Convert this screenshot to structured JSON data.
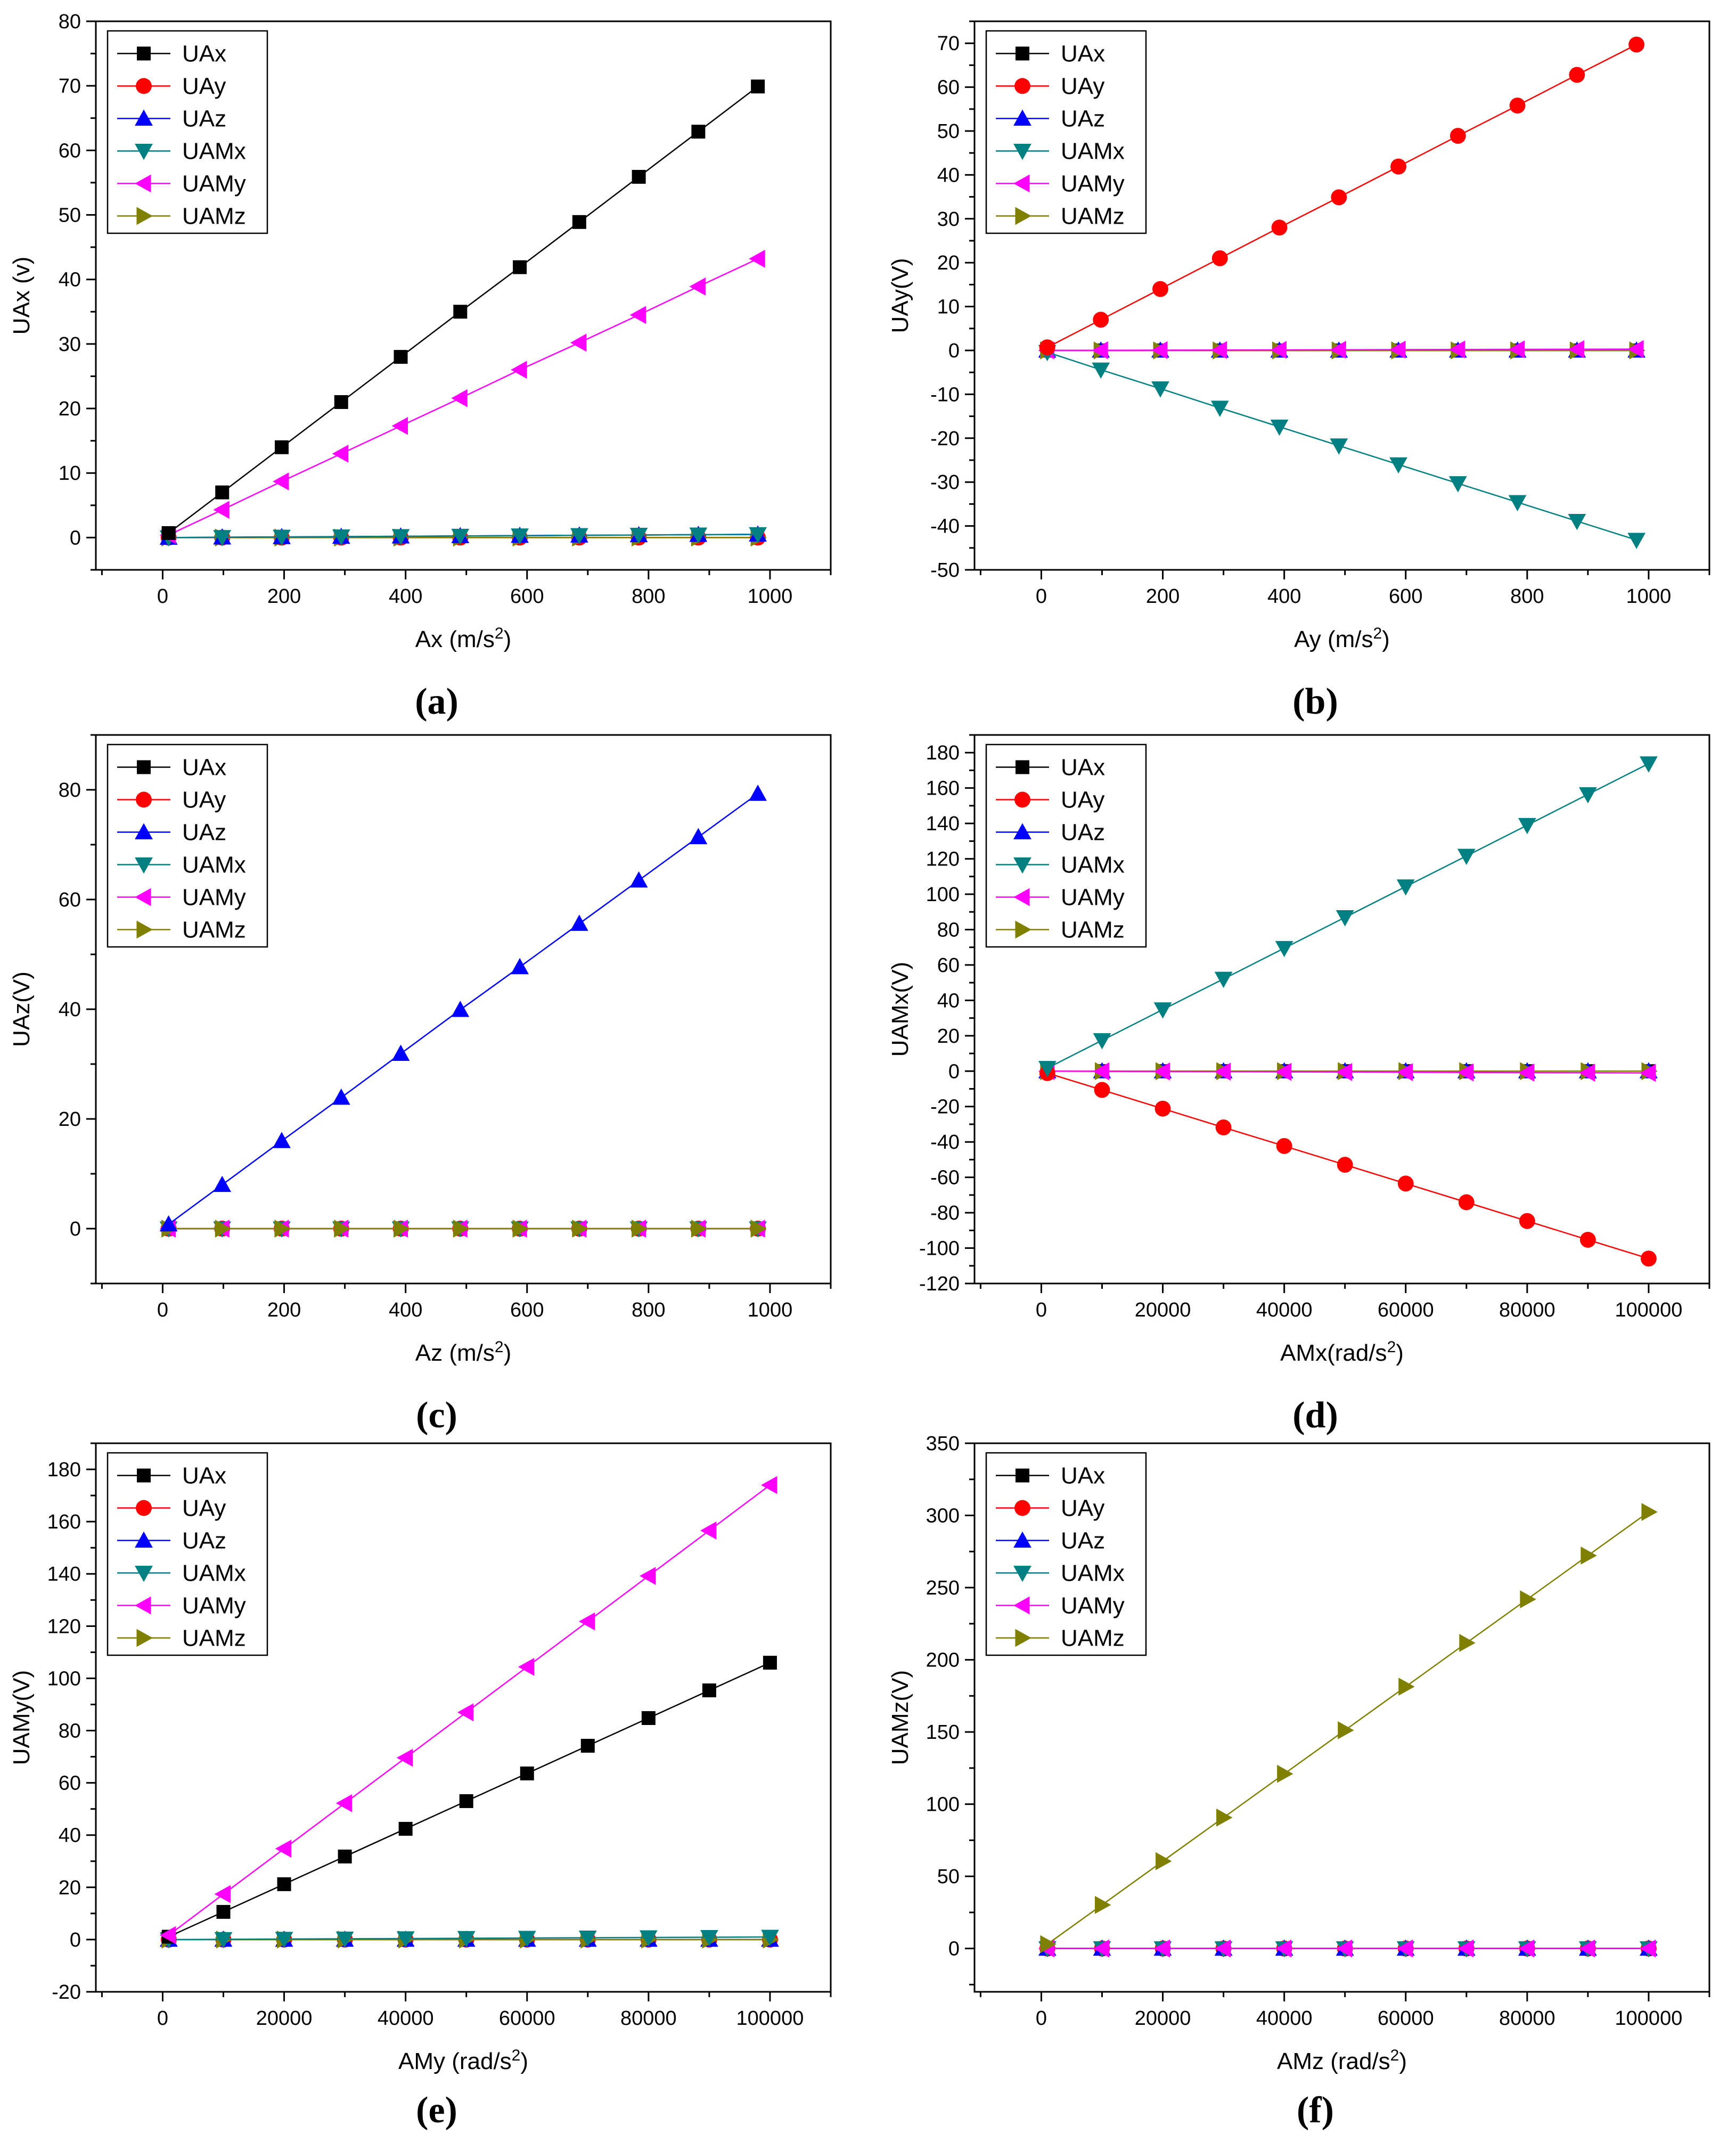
{
  "figure": {
    "series_colors": {
      "UAx": "#000000",
      "UAy": "#ff0000",
      "UAz": "#0000ff",
      "UAMx": "#008080",
      "UAMy": "#ff00ff",
      "UAMz": "#808000"
    },
    "series_markers": {
      "UAx": "square",
      "UAy": "circle",
      "UAz": "triangle-up",
      "UAMx": "triangle-down",
      "UAMy": "triangle-left",
      "UAMz": "triangle-right"
    }
  },
  "chart_data": [
    {
      "panel": "(a)",
      "type": "line",
      "xlabel": "Ax (m/s²)",
      "ylabel": "UAx (v)",
      "xlim": [
        -110,
        1100
      ],
      "ylim": [
        -5,
        80
      ],
      "xticks": [
        0,
        200,
        400,
        600,
        800,
        1000
      ],
      "yticks": [
        0,
        10,
        20,
        30,
        40,
        50,
        60,
        70,
        80
      ],
      "legend": "top-left",
      "grid": false,
      "x": [
        9.8,
        98,
        196,
        294,
        392,
        490,
        588,
        686,
        784,
        882,
        980
      ],
      "series": [
        {
          "name": "UAx",
          "values": [
            0.7,
            7.0,
            14.0,
            21.0,
            28.0,
            35.0,
            41.9,
            48.9,
            55.9,
            62.9,
            69.9
          ]
        },
        {
          "name": "UAy",
          "values": [
            0.0,
            0.0,
            0.0,
            0.0,
            0.0,
            0.0,
            0.0,
            0.0,
            0.0,
            0.0,
            0.0
          ]
        },
        {
          "name": "UAz",
          "values": [
            0.0,
            0.05,
            0.1,
            0.15,
            0.2,
            0.25,
            0.3,
            0.35,
            0.4,
            0.45,
            0.5
          ]
        },
        {
          "name": "UAMx",
          "values": [
            0.0,
            0.05,
            0.1,
            0.15,
            0.2,
            0.25,
            0.3,
            0.35,
            0.4,
            0.45,
            0.5
          ]
        },
        {
          "name": "UAMy",
          "values": [
            0.4,
            4.3,
            8.7,
            13.0,
            17.3,
            21.6,
            26.0,
            30.2,
            34.5,
            38.9,
            43.2
          ]
        },
        {
          "name": "UAMz",
          "values": [
            0.0,
            0.0,
            0.0,
            0.0,
            0.0,
            0.0,
            0.0,
            0.0,
            0.0,
            0.0,
            0.0
          ]
        }
      ]
    },
    {
      "panel": "(b)",
      "type": "line",
      "xlabel": "Ay (m/s²)",
      "ylabel": "UAy(V)",
      "xlim": [
        -110,
        1100
      ],
      "ylim": [
        -50,
        75
      ],
      "xticks": [
        0,
        200,
        400,
        600,
        800,
        1000
      ],
      "yticks": [
        -50,
        -40,
        -30,
        -20,
        -10,
        0,
        10,
        20,
        30,
        40,
        50,
        60,
        70
      ],
      "legend": "top-left",
      "grid": false,
      "x": [
        9.8,
        98,
        196,
        294,
        392,
        490,
        588,
        686,
        784,
        882,
        980
      ],
      "series": [
        {
          "name": "UAx",
          "values": [
            0.0,
            0.0,
            0.0,
            0.0,
            0.0,
            0.0,
            0.0,
            0.0,
            0.0,
            0.0,
            0.0
          ]
        },
        {
          "name": "UAy",
          "values": [
            0.7,
            7.0,
            14.0,
            21.0,
            28.0,
            34.9,
            41.9,
            48.9,
            55.8,
            62.8,
            69.7
          ]
        },
        {
          "name": "UAz",
          "values": [
            0.0,
            0.0,
            0.0,
            0.0,
            0.0,
            0.0,
            0.0,
            0.0,
            0.0,
            0.0,
            0.0
          ]
        },
        {
          "name": "UAMx",
          "values": [
            -0.4,
            -4.4,
            -8.7,
            -13.1,
            -17.4,
            -21.7,
            -26.0,
            -30.3,
            -34.6,
            -38.9,
            -43.2
          ]
        },
        {
          "name": "UAMy",
          "values": [
            0.0,
            0.03,
            0.06,
            0.09,
            0.12,
            0.15,
            0.18,
            0.21,
            0.24,
            0.27,
            0.3
          ]
        },
        {
          "name": "UAMz",
          "values": [
            0.0,
            0.0,
            0.0,
            0.0,
            0.0,
            0.0,
            0.0,
            0.0,
            0.0,
            0.0,
            0.0
          ]
        }
      ]
    },
    {
      "panel": "(c)",
      "type": "line",
      "xlabel": "Az (m/s²)",
      "ylabel": "UAz(V)",
      "xlim": [
        -110,
        1100
      ],
      "ylim": [
        -10,
        90
      ],
      "xticks": [
        0,
        200,
        400,
        600,
        800,
        1000
      ],
      "yticks": [
        0,
        20,
        40,
        60,
        80
      ],
      "legend": "top-left",
      "grid": false,
      "x": [
        9.8,
        98,
        196,
        294,
        392,
        490,
        588,
        686,
        784,
        882,
        980
      ],
      "series": [
        {
          "name": "UAx",
          "values": [
            0.0,
            0.0,
            0.0,
            0.0,
            0.0,
            0.0,
            0.0,
            0.0,
            0.0,
            0.0,
            0.0
          ]
        },
        {
          "name": "UAy",
          "values": [
            0.0,
            0.0,
            0.0,
            0.0,
            0.0,
            0.0,
            0.0,
            0.0,
            0.0,
            0.0,
            0.0
          ]
        },
        {
          "name": "UAz",
          "values": [
            0.8,
            8.0,
            16.0,
            23.9,
            31.9,
            39.9,
            47.7,
            55.6,
            63.5,
            71.4,
            79.3
          ]
        },
        {
          "name": "UAMx",
          "values": [
            0.0,
            0.0,
            0.0,
            0.0,
            0.0,
            0.0,
            0.0,
            0.0,
            0.0,
            0.0,
            0.0
          ]
        },
        {
          "name": "UAMy",
          "values": [
            0.0,
            0.0,
            0.0,
            0.0,
            0.0,
            0.0,
            0.0,
            0.0,
            0.0,
            0.0,
            0.0
          ]
        },
        {
          "name": "UAMz",
          "values": [
            0.0,
            0.0,
            0.0,
            0.0,
            0.0,
            0.0,
            0.0,
            0.0,
            0.0,
            0.0,
            0.0
          ]
        }
      ]
    },
    {
      "panel": "(d)",
      "type": "line",
      "xlabel": "AMx(rad/s²)",
      "ylabel": "UAMx(V)",
      "xlim": [
        -11000,
        110000
      ],
      "ylim": [
        -120,
        190
      ],
      "xticks": [
        0,
        20000,
        40000,
        60000,
        80000,
        100000
      ],
      "yticks": [
        -120,
        -100,
        -80,
        -60,
        -40,
        -20,
        0,
        20,
        40,
        60,
        80,
        100,
        120,
        140,
        160,
        180
      ],
      "legend": "top-left",
      "grid": false,
      "x": [
        1000,
        10000,
        20000,
        30000,
        40000,
        50000,
        60000,
        70000,
        80000,
        90000,
        100000
      ],
      "series": [
        {
          "name": "UAx",
          "values": [
            0.0,
            0.0,
            0.0,
            0.0,
            0.0,
            0.0,
            0.0,
            0.0,
            0.0,
            0.0,
            0.0
          ]
        },
        {
          "name": "UAy",
          "values": [
            -1.1,
            -10.6,
            -21.2,
            -31.8,
            -42.3,
            -52.9,
            -63.5,
            -74.1,
            -84.7,
            -95.3,
            -105.9
          ]
        },
        {
          "name": "UAz",
          "values": [
            0.0,
            0.0,
            0.0,
            0.0,
            0.0,
            0.0,
            0.0,
            0.0,
            0.0,
            0.0,
            0.0
          ]
        },
        {
          "name": "UAMx",
          "values": [
            1.7,
            17.4,
            34.8,
            52.1,
            69.5,
            86.9,
            104.3,
            121.6,
            139.0,
            156.4,
            173.8
          ]
        },
        {
          "name": "UAMy",
          "values": [
            0.0,
            -0.1,
            -0.2,
            -0.3,
            -0.4,
            -0.5,
            -0.6,
            -0.7,
            -0.8,
            -0.9,
            -1.0
          ]
        },
        {
          "name": "UAMz",
          "values": [
            0.0,
            0.0,
            0.0,
            0.0,
            0.0,
            0.0,
            0.0,
            0.0,
            0.0,
            0.0,
            0.0
          ]
        }
      ]
    },
    {
      "panel": "(e)",
      "type": "line",
      "xlabel": "AMy (rad/s²)",
      "ylabel": "UAMy(V)",
      "xlim": [
        -11000,
        110000
      ],
      "ylim": [
        -20,
        190
      ],
      "xticks": [
        0,
        20000,
        40000,
        60000,
        80000,
        100000
      ],
      "yticks": [
        -20,
        0,
        20,
        40,
        60,
        80,
        100,
        120,
        140,
        160,
        180
      ],
      "legend": "top-left",
      "grid": false,
      "x": [
        1000,
        10000,
        20000,
        30000,
        40000,
        50000,
        60000,
        70000,
        80000,
        90000,
        100000
      ],
      "series": [
        {
          "name": "UAx",
          "values": [
            1.1,
            10.6,
            21.2,
            31.8,
            42.4,
            53.0,
            63.6,
            74.2,
            84.8,
            95.4,
            106.0
          ]
        },
        {
          "name": "UAy",
          "values": [
            0.0,
            0.0,
            0.0,
            0.0,
            0.0,
            0.0,
            0.0,
            0.0,
            0.0,
            0.0,
            0.0
          ]
        },
        {
          "name": "UAz",
          "values": [
            0.0,
            0.0,
            0.0,
            0.0,
            0.0,
            0.0,
            0.0,
            0.0,
            0.0,
            0.0,
            0.0
          ]
        },
        {
          "name": "UAMx",
          "values": [
            0.0,
            0.1,
            0.2,
            0.3,
            0.4,
            0.5,
            0.6,
            0.7,
            0.8,
            0.9,
            1.0
          ]
        },
        {
          "name": "UAMy",
          "values": [
            1.7,
            17.4,
            34.8,
            52.2,
            69.6,
            87.0,
            104.4,
            121.8,
            139.2,
            156.6,
            174.0
          ]
        },
        {
          "name": "UAMz",
          "values": [
            0.0,
            0.0,
            0.0,
            0.0,
            0.0,
            0.0,
            0.0,
            0.0,
            0.0,
            0.0,
            0.0
          ]
        }
      ]
    },
    {
      "panel": "(f)",
      "type": "line",
      "xlabel": "AMz (rad/s²)",
      "ylabel": "UAMz(V)",
      "xlim": [
        -11000,
        110000
      ],
      "ylim": [
        -30,
        350
      ],
      "xticks": [
        0,
        20000,
        40000,
        60000,
        80000,
        100000
      ],
      "yticks": [
        0,
        50,
        100,
        150,
        200,
        250,
        300,
        350
      ],
      "legend": "top-left",
      "grid": false,
      "x": [
        1000,
        10000,
        20000,
        30000,
        40000,
        50000,
        60000,
        70000,
        80000,
        90000,
        100000
      ],
      "series": [
        {
          "name": "UAx",
          "values": [
            0.0,
            0.0,
            0.0,
            0.0,
            0.0,
            0.0,
            0.0,
            0.0,
            0.0,
            0.0,
            0.0
          ]
        },
        {
          "name": "UAy",
          "values": [
            0.0,
            0.0,
            0.0,
            0.0,
            0.0,
            0.0,
            0.0,
            0.0,
            0.0,
            0.0,
            0.0
          ]
        },
        {
          "name": "UAz",
          "values": [
            0.0,
            0.0,
            0.0,
            0.0,
            0.0,
            0.0,
            0.0,
            0.0,
            0.0,
            0.0,
            0.0
          ]
        },
        {
          "name": "UAMx",
          "values": [
            0.0,
            0.0,
            0.0,
            0.0,
            0.0,
            0.0,
            0.0,
            0.0,
            0.0,
            0.0,
            0.0
          ]
        },
        {
          "name": "UAMy",
          "values": [
            0.0,
            0.0,
            0.0,
            0.0,
            0.0,
            0.0,
            0.0,
            0.0,
            0.0,
            0.0,
            0.0
          ]
        },
        {
          "name": "UAMz",
          "values": [
            3.0,
            30.2,
            60.5,
            90.7,
            121.0,
            151.2,
            181.4,
            211.7,
            241.9,
            272.2,
            302.4
          ]
        }
      ]
    }
  ]
}
